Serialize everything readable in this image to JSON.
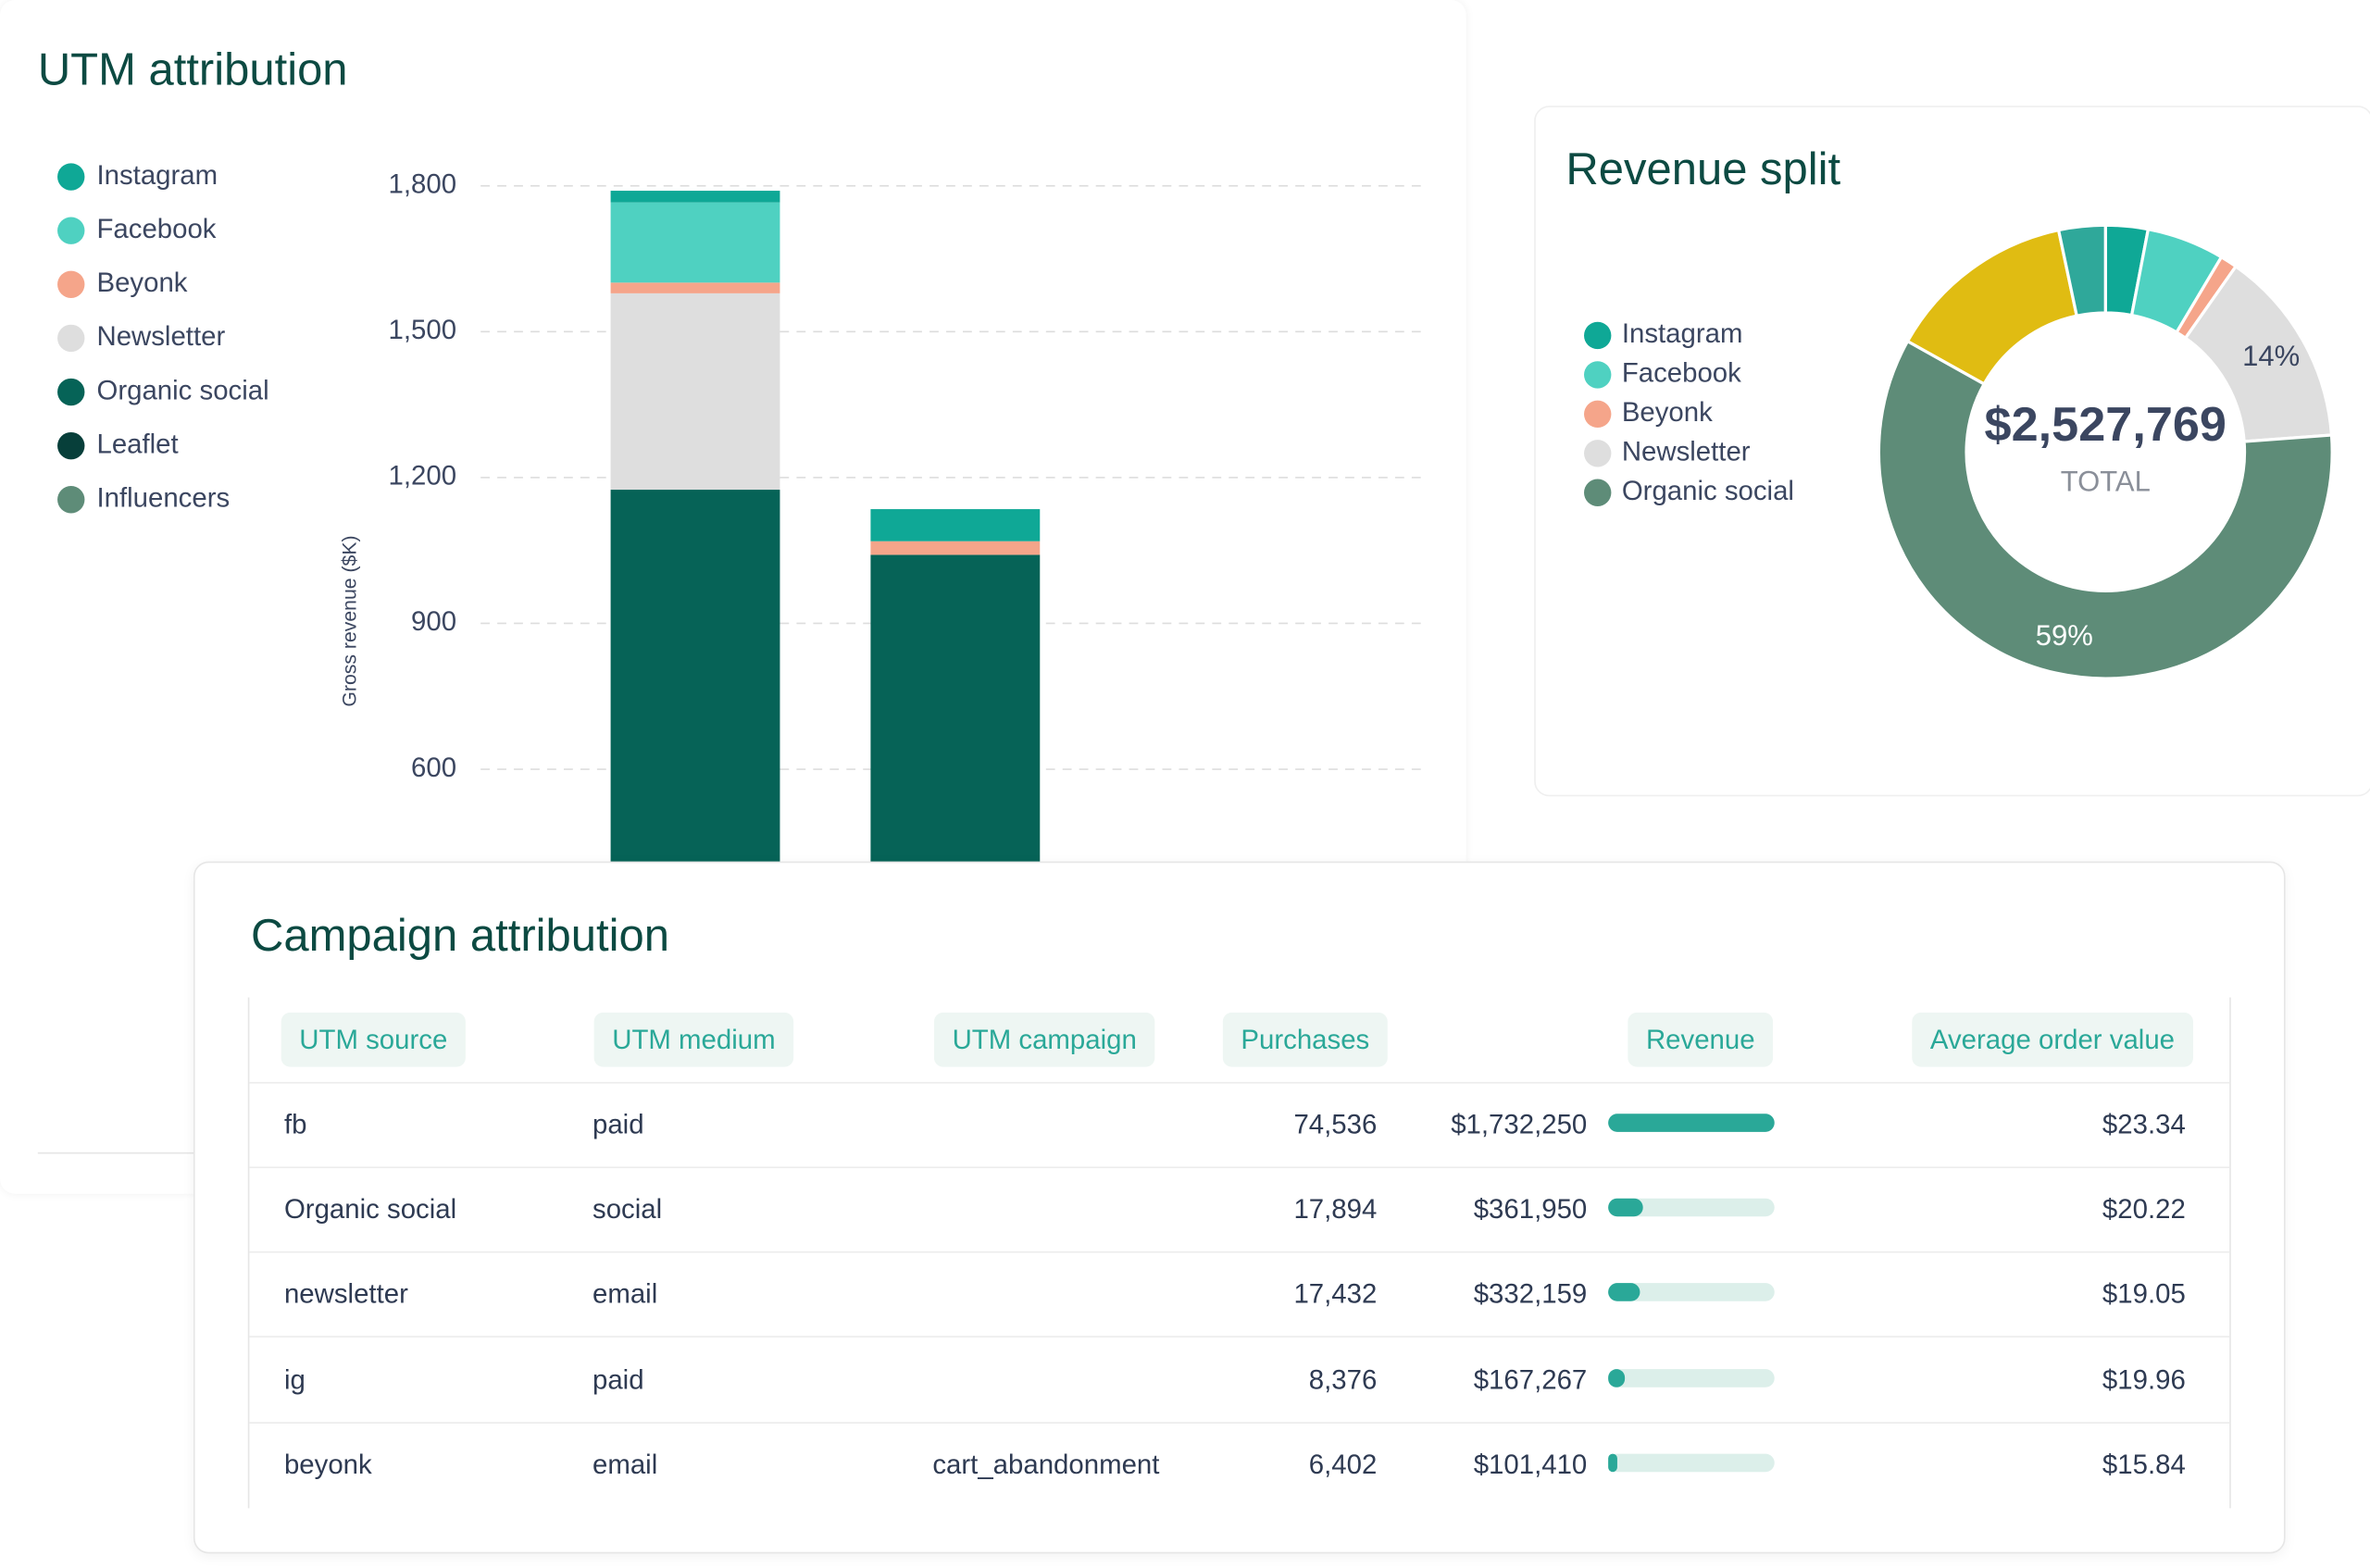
{
  "chart_data": [
    {
      "type": "bar",
      "stacked": true,
      "title": "UTM attribution",
      "y_label": "Gross revenue ($K)",
      "categories": [
        null,
        null
      ],
      "series": [
        {
          "name": "Instagram",
          "color": "#0fa896",
          "values": [
            24,
            66
          ]
        },
        {
          "name": "Facebook",
          "color": "#4fd1c1",
          "values": [
            165,
            0
          ]
        },
        {
          "name": "Beyonk",
          "color": "#f5a58a",
          "values": [
            22,
            28
          ]
        },
        {
          "name": "Newsletter",
          "color": "#dedede",
          "values": [
            404,
            0
          ]
        },
        {
          "name": "Organic social",
          "color": "#066357",
          "values": [
            1175,
            1041
          ]
        },
        {
          "name": "Leaflet",
          "color": "#073f3a",
          "values": [
            0,
            0
          ]
        },
        {
          "name": "Influencers",
          "color": "#5e8c78",
          "values": [
            0,
            0
          ]
        }
      ],
      "ylim": [
        0,
        1800
      ],
      "yticks": [
        600,
        900,
        {
          "value": 1200,
          "label": "1,200"
        },
        {
          "value": 1500,
          "label": "1,500"
        },
        {
          "value": 1800,
          "label": "1,800"
        }
      ],
      "grid": true
    },
    {
      "type": "pie",
      "donut": true,
      "title": "Revenue split",
      "categories": [
        "Instagram",
        "Facebook",
        "Beyonk",
        "Newsletter",
        "Organic social",
        null,
        null
      ],
      "values": [
        3,
        5.5,
        1.2,
        14,
        59,
        13.5,
        3.3
      ],
      "value_labels": [
        null,
        null,
        null,
        "14%",
        "59%",
        null,
        null
      ],
      "colors": [
        "#0fa896",
        "#4fd1c1",
        "#f5a58a",
        "#dedede",
        "#5e8c78",
        "#e0bc12",
        "#2fa89a"
      ],
      "center_value": "$2,527,769",
      "center_label": "TOTAL"
    }
  ],
  "table": {
    "title": "Campaign attribution",
    "columns": [
      "UTM source",
      "UTM medium",
      "UTM campaign",
      "Purchases",
      "Revenue",
      "Average order value"
    ],
    "rows": [
      [
        "fb",
        "paid",
        null,
        "74,536",
        "$1,732,250",
        "$23.34"
      ],
      [
        "Organic social",
        "social",
        null,
        "17,894",
        "$361,950",
        "$20.22"
      ],
      [
        "newsletter",
        "email",
        null,
        "17,432",
        "$332,159",
        "$19.05"
      ],
      [
        "ig",
        "paid",
        null,
        "8,376",
        "$167,267",
        "$19.96"
      ],
      [
        "beyonk",
        "email",
        "cart_abandonment",
        "6,402",
        "$101,410",
        "$15.84"
      ]
    ]
  }
}
